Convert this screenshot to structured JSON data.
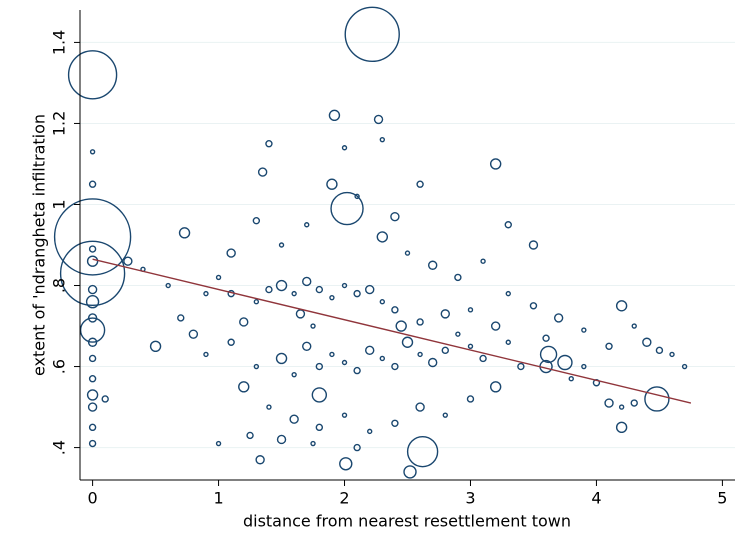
{
  "chart_data": {
    "type": "scatter",
    "x_label": "distance from nearest resettlement town",
    "y_label": "extent of 'ndrangheta infiltration",
    "xlim": [
      -0.1,
      5.1
    ],
    "ylim": [
      0.32,
      1.48
    ],
    "xticks": [
      0,
      1,
      2,
      3,
      4,
      5
    ],
    "yticks": [
      {
        "value": 0.4,
        "label": ".4"
      },
      {
        "value": 0.6,
        "label": ".6"
      },
      {
        "value": 0.8,
        "label": ".8"
      },
      1,
      1.2,
      1.4
    ],
    "grid": true,
    "series": [
      {
        "type": "scatter",
        "color": "#1a476f",
        "x": [
          0,
          0,
          0,
          0,
          0,
          0,
          0,
          0,
          0,
          0,
          0,
          0,
          0,
          0,
          0,
          0,
          0,
          0,
          2.22,
          2.62,
          2.02,
          4.48,
          2.52,
          2.01,
          1.92,
          2.27,
          3.2,
          1.35,
          0.73,
          0.28,
          1.8,
          3.62,
          3.75,
          3.6,
          4.2,
          1.33,
          1.0,
          1.1,
          1.2,
          1.3,
          1.4,
          1.5,
          1.6,
          1.7,
          1.8,
          1.9,
          2.0,
          2.1,
          2.2,
          2.3,
          2.4,
          1.5,
          1.6,
          1.7,
          1.8,
          1.9,
          2.0,
          2.1,
          2.2,
          2.3,
          2.4,
          2.5,
          2.6,
          2.7,
          2.8,
          2.9,
          3.0,
          3.1,
          3.2,
          3.3,
          3.4,
          1.2,
          1.4,
          1.6,
          1.8,
          2.0,
          2.2,
          2.4,
          2.6,
          2.8,
          3.0,
          3.2,
          0.9,
          0.8,
          1.1,
          1.3,
          1.0,
          1.25,
          1.5,
          1.75,
          2.1,
          2.3,
          2.5,
          2.7,
          2.9,
          3.1,
          3.3,
          3.5,
          3.7,
          3.9,
          4.1,
          4.2,
          4.3,
          4.4,
          4.5,
          4.6,
          4.2,
          4.3,
          4.1,
          3.8,
          4.0,
          1.9,
          2.1,
          2.4,
          2.6,
          1.7,
          1.5,
          1.3,
          1.1,
          0.9,
          0.7,
          0.5,
          0.6,
          3.5,
          3.3,
          2.0,
          2.3,
          1.4,
          2.8,
          3.0,
          2.6,
          2.45,
          1.75,
          1.65,
          3.6,
          3.9,
          4.7,
          0.1,
          0.4
        ],
        "values": [
          0.41,
          0.45,
          0.5,
          0.53,
          0.57,
          0.62,
          0.66,
          0.69,
          0.72,
          0.76,
          0.79,
          0.86,
          0.89,
          1.05,
          1.13,
          0.92,
          0.83,
          1.32,
          1.42,
          0.39,
          0.99,
          0.52,
          0.34,
          0.36,
          1.22,
          1.21,
          1.1,
          1.08,
          0.93,
          0.86,
          0.53,
          0.63,
          0.61,
          0.6,
          0.45,
          0.37,
          0.82,
          0.78,
          0.71,
          0.76,
          0.79,
          0.8,
          0.78,
          0.81,
          0.79,
          0.77,
          0.8,
          0.78,
          0.79,
          0.76,
          0.74,
          0.62,
          0.58,
          0.65,
          0.6,
          0.63,
          0.61,
          0.59,
          0.64,
          0.62,
          0.6,
          0.66,
          0.63,
          0.61,
          0.64,
          0.68,
          0.65,
          0.62,
          0.7,
          0.66,
          0.6,
          0.55,
          0.5,
          0.47,
          0.45,
          0.48,
          0.44,
          0.46,
          0.5,
          0.48,
          0.52,
          0.55,
          0.63,
          0.68,
          0.66,
          0.6,
          0.41,
          0.43,
          0.42,
          0.41,
          0.4,
          0.92,
          0.88,
          0.85,
          0.82,
          0.86,
          0.78,
          0.75,
          0.72,
          0.69,
          0.65,
          0.75,
          0.7,
          0.66,
          0.64,
          0.63,
          0.5,
          0.51,
          0.51,
          0.57,
          0.56,
          1.05,
          1.02,
          0.97,
          1.05,
          0.95,
          0.9,
          0.96,
          0.88,
          0.78,
          0.72,
          0.65,
          0.8,
          0.9,
          0.95,
          1.14,
          1.16,
          1.15,
          0.73,
          0.74,
          0.71,
          0.7,
          0.7,
          0.73,
          0.67,
          0.6,
          0.6,
          0.52,
          0.84
        ],
        "sizes": [
          9,
          9,
          16,
          25,
          9,
          9,
          16,
          144,
          16,
          36,
          16,
          25,
          9,
          9,
          4,
          1444,
          1024,
          576,
          729,
          225,
          256,
          144,
          36,
          36,
          25,
          16,
          25,
          16,
          25,
          16,
          49,
          64,
          49,
          36,
          25,
          16,
          4,
          9,
          16,
          4,
          9,
          25,
          4,
          16,
          9,
          4,
          4,
          9,
          16,
          4,
          9,
          25,
          4,
          16,
          9,
          4,
          4,
          9,
          16,
          4,
          9,
          25,
          4,
          16,
          9,
          4,
          4,
          9,
          16,
          4,
          9,
          25,
          4,
          16,
          9,
          4,
          4,
          9,
          16,
          4,
          9,
          25,
          4,
          16,
          9,
          4,
          4,
          9,
          16,
          4,
          9,
          25,
          4,
          16,
          9,
          4,
          4,
          9,
          16,
          4,
          9,
          25,
          4,
          16,
          9,
          4,
          4,
          9,
          16,
          4,
          9,
          25,
          4,
          16,
          9,
          4,
          4,
          9,
          16,
          4,
          9,
          25,
          4,
          16,
          9,
          4,
          4,
          9,
          16,
          4,
          9,
          25,
          4,
          16,
          9,
          4,
          4,
          9,
          4
        ]
      },
      {
        "type": "line",
        "color": "#90353b",
        "x": [
          0,
          4.75
        ],
        "values": [
          0.865,
          0.51
        ]
      }
    ]
  }
}
